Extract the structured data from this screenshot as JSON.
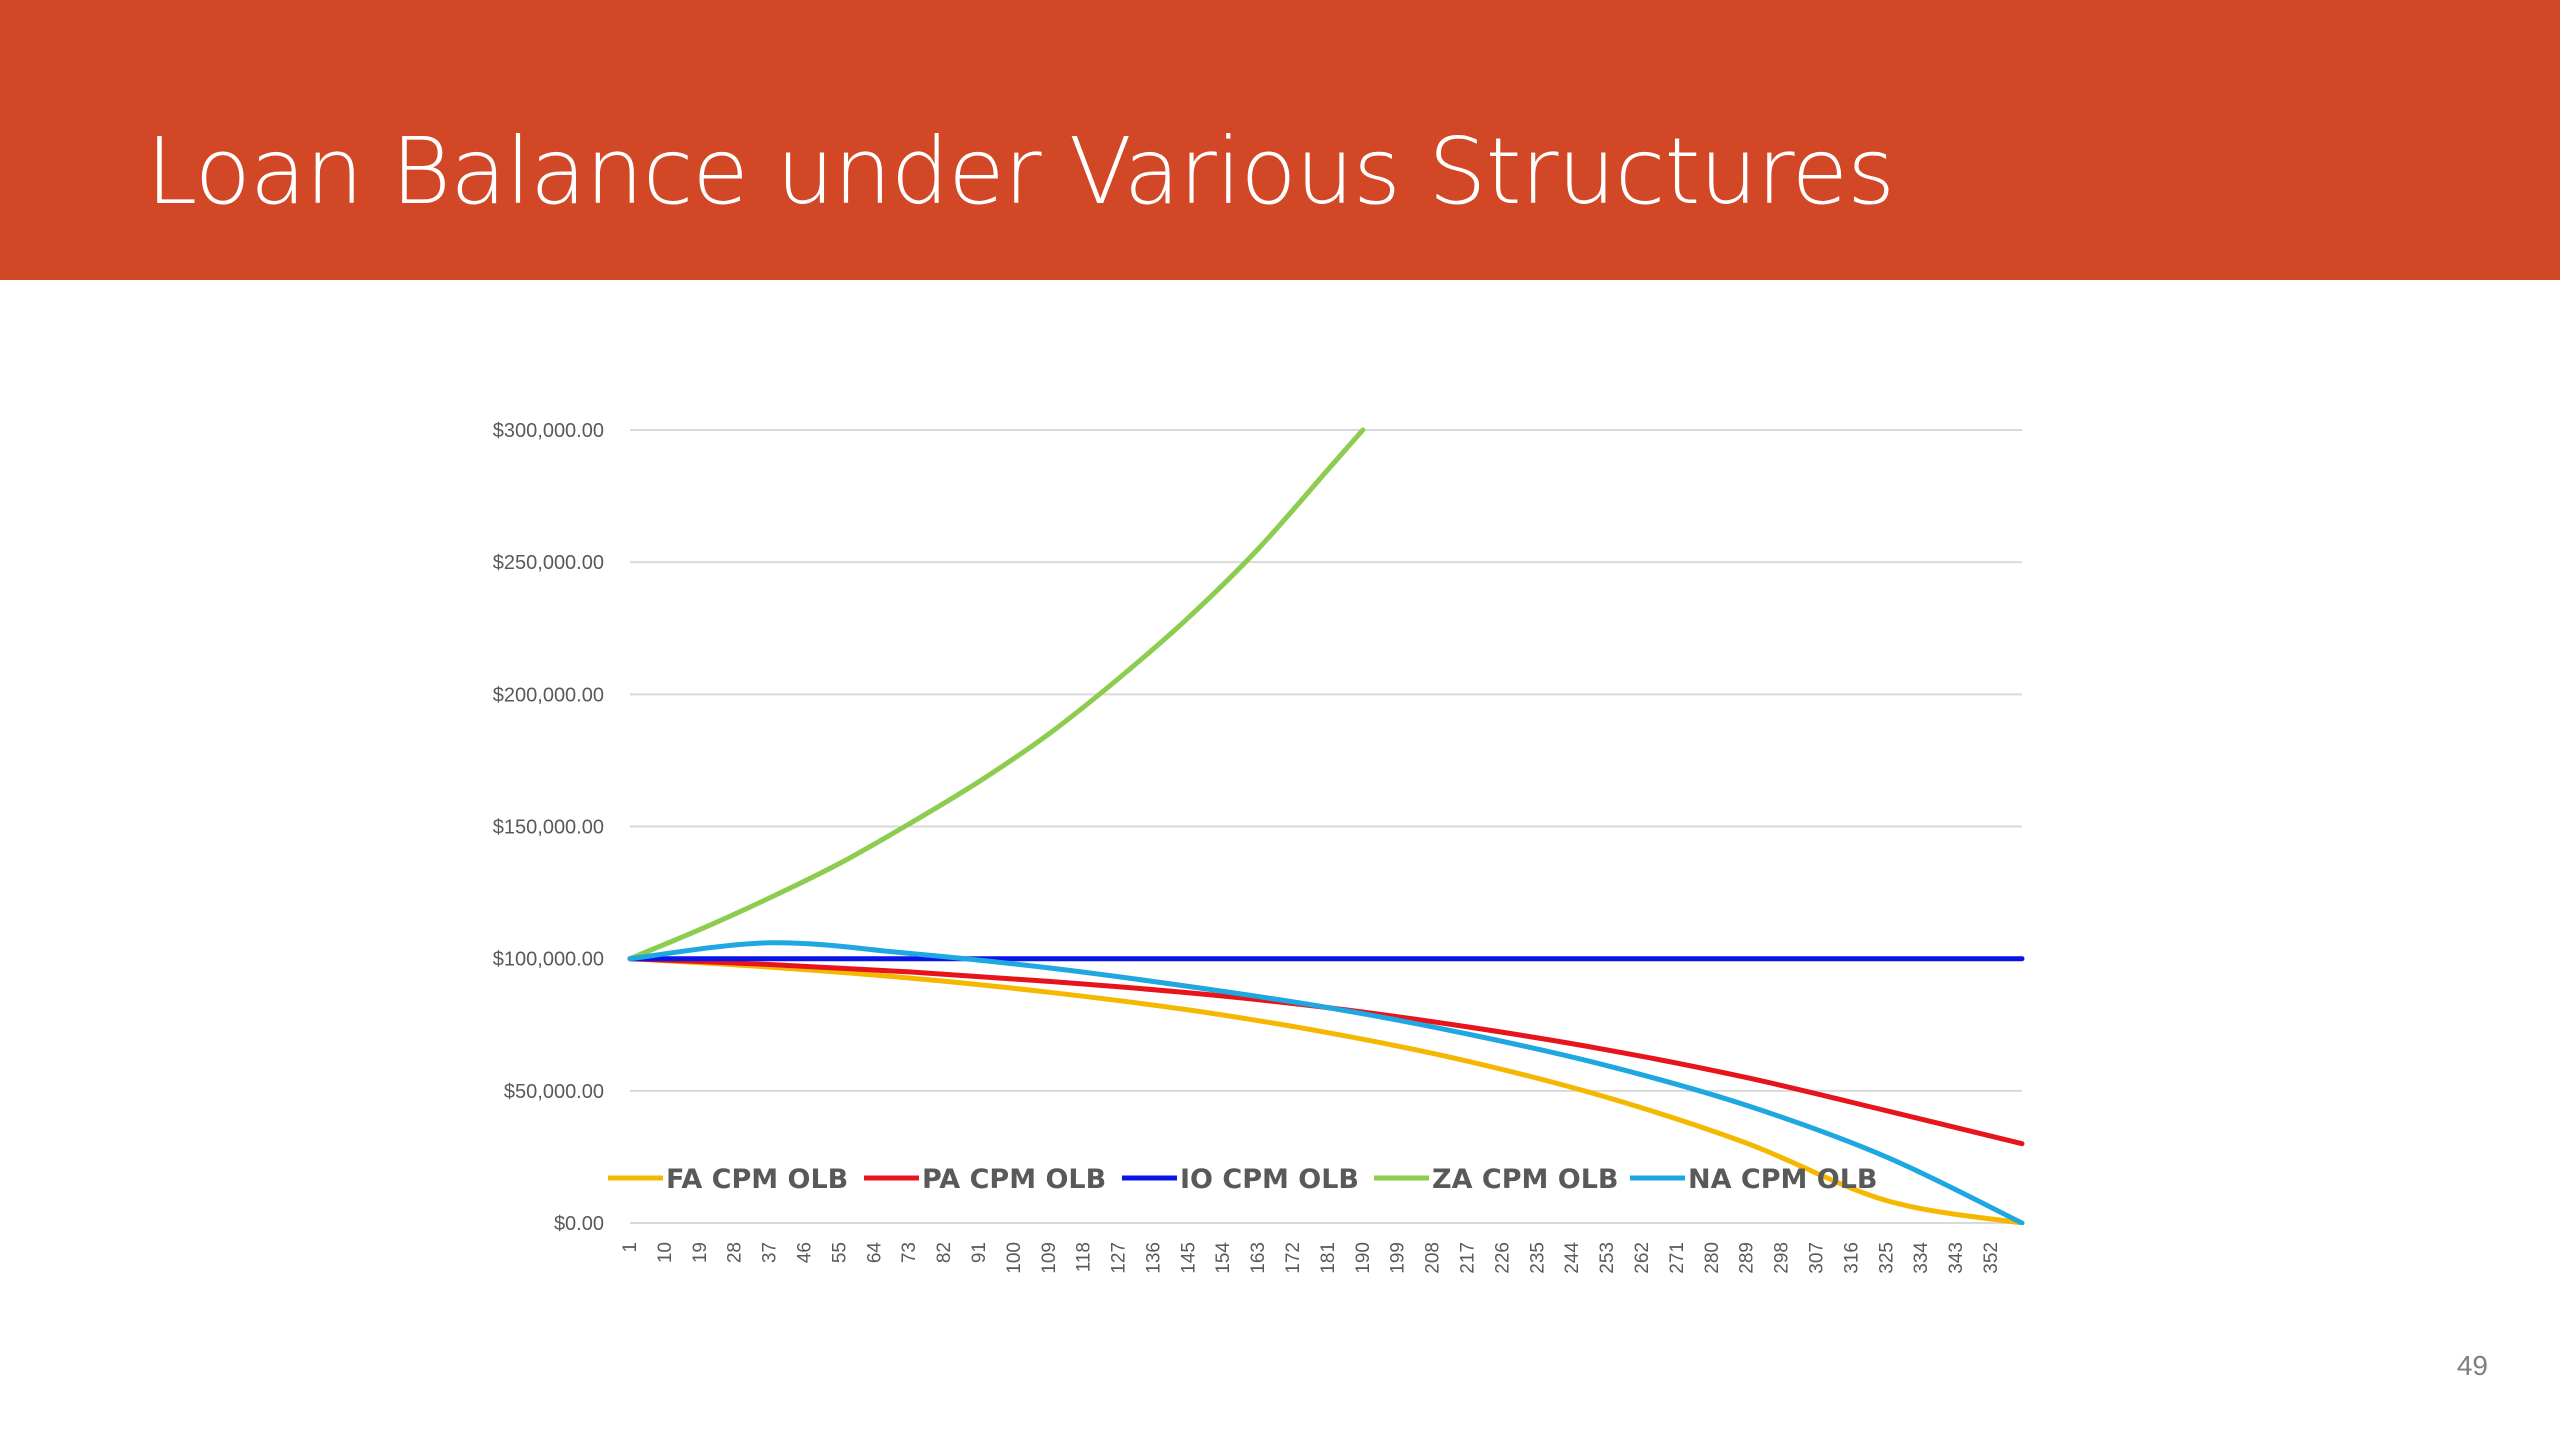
{
  "slide": {
    "title": "Loan Balance under Various Structures",
    "page_number": "49",
    "header_color": "#d24726"
  },
  "chart_data": {
    "type": "line",
    "title": "",
    "xlabel": "",
    "ylabel": "",
    "x_range": [
      1,
      360
    ],
    "ylim": [
      0,
      300000
    ],
    "y_ticks": [
      0,
      50000,
      100000,
      150000,
      200000,
      250000,
      300000
    ],
    "y_tick_labels": [
      "$0.00",
      "$50,000.00",
      "$100,000.00",
      "$150,000.00",
      "$200,000.00",
      "$250,000.00",
      "$300,000.00"
    ],
    "x_tick_labels": [
      "1",
      "10",
      "19",
      "28",
      "37",
      "46",
      "55",
      "64",
      "73",
      "82",
      "91",
      "100",
      "109",
      "118",
      "127",
      "136",
      "145",
      "154",
      "163",
      "172",
      "181",
      "190",
      "199",
      "208",
      "217",
      "226",
      "235",
      "244",
      "253",
      "262",
      "271",
      "280",
      "289",
      "298",
      "307",
      "316",
      "325",
      "334",
      "343",
      "352"
    ],
    "grid": "horizontal",
    "legend_position": "bottom-inside",
    "series": [
      {
        "name": "FA CPM OLB",
        "color": "#f5b800",
        "x": [
          1,
          37,
          73,
          109,
          145,
          181,
          217,
          253,
          289,
          325,
          360
        ],
        "values": [
          100000,
          96800,
          92700,
          87300,
          80600,
          72000,
          61200,
          47500,
          30200,
          8500,
          0
        ]
      },
      {
        "name": "PA CPM OLB",
        "color": "#e8141b",
        "x": [
          1,
          37,
          73,
          109,
          145,
          181,
          217,
          253,
          289,
          325,
          360
        ],
        "values": [
          100000,
          97800,
          95000,
          91400,
          87100,
          81500,
          74200,
          65500,
          55000,
          42500,
          30000
        ]
      },
      {
        "name": "IO CPM OLB",
        "color": "#0a14e6",
        "x": [
          1,
          360
        ],
        "values": [
          100000,
          100000
        ]
      },
      {
        "name": "ZA CPM OLB",
        "color": "#8ccc4e",
        "x": [
          1,
          19,
          37,
          55,
          73,
          91,
          109,
          127,
          145,
          163,
          181,
          190
        ],
        "values": [
          100000,
          111000,
          123000,
          136000,
          151000,
          167000,
          185000,
          206000,
          229000,
          255000,
          285000,
          300000
        ]
      },
      {
        "name": "NA CPM OLB",
        "color": "#1ea7e1",
        "x": [
          1,
          37,
          73,
          109,
          145,
          181,
          217,
          253,
          289,
          325,
          360
        ],
        "values": [
          100000,
          106000,
          102000,
          96500,
          89500,
          81500,
          71500,
          59500,
          44500,
          25000,
          0
        ]
      }
    ]
  }
}
